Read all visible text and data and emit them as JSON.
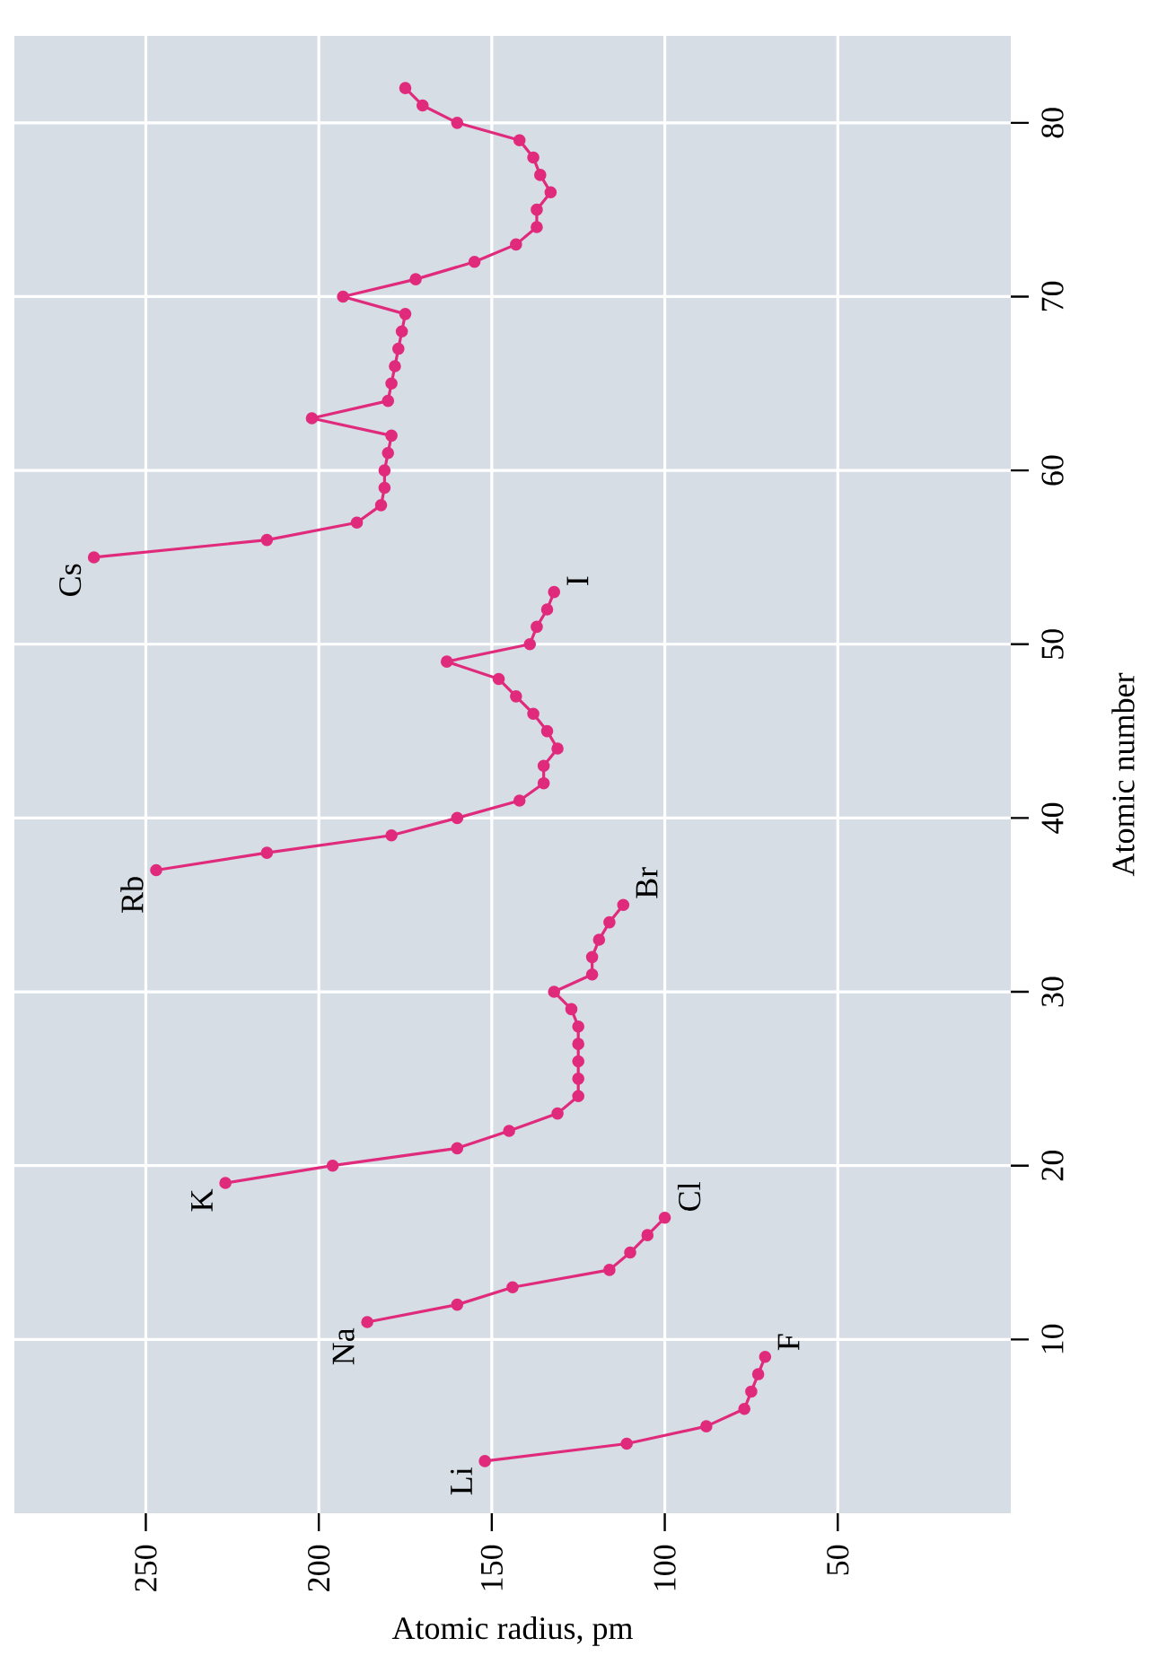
{
  "chart_data": {
    "type": "line",
    "xlabel": "Atomic radius, pm",
    "ylabel": "Atomic number",
    "xlim": [
      288,
      0
    ],
    "ylim": [
      0,
      85
    ],
    "xticks": [
      250,
      200,
      150,
      100,
      50
    ],
    "yticks": [
      10,
      20,
      30,
      40,
      50,
      60,
      70,
      80
    ],
    "grid": true,
    "marker": "circle",
    "line_style": "solid",
    "series": [
      {
        "color": "#e02a7c",
        "x": [
          152,
          111,
          88,
          77,
          75,
          73,
          71
        ],
        "values": [
          3,
          4,
          5,
          6,
          7,
          8,
          9
        ]
      },
      {
        "color": "#e02a7c",
        "x": [
          186,
          160,
          144,
          116,
          110,
          105,
          100
        ],
        "values": [
          11,
          12,
          13,
          14,
          15,
          16,
          17
        ]
      },
      {
        "color": "#e02a7c",
        "x": [
          227,
          196,
          160,
          145,
          131,
          125,
          125,
          125,
          125,
          125,
          127,
          132,
          121,
          121,
          119,
          116,
          112
        ],
        "values": [
          19,
          20,
          21,
          22,
          23,
          24,
          25,
          26,
          27,
          28,
          29,
          30,
          31,
          32,
          33,
          34,
          35
        ]
      },
      {
        "color": "#e02a7c",
        "x": [
          247,
          215,
          179,
          160,
          142,
          135,
          135,
          131,
          134,
          138,
          143,
          148,
          163,
          139,
          137,
          134,
          132
        ],
        "values": [
          37,
          38,
          39,
          40,
          41,
          42,
          43,
          44,
          45,
          46,
          47,
          48,
          49,
          50,
          51,
          52,
          53
        ]
      },
      {
        "color": "#e02a7c",
        "x": [
          265,
          215,
          189,
          182,
          181,
          181,
          180,
          179,
          202,
          180,
          179,
          178,
          177,
          176,
          175,
          193,
          172,
          155,
          143,
          137,
          137,
          133,
          136,
          138,
          142,
          160,
          170,
          175
        ],
        "values": [
          55,
          56,
          57,
          58,
          59,
          60,
          61,
          62,
          63,
          64,
          65,
          66,
          67,
          68,
          69,
          70,
          71,
          72,
          73,
          74,
          75,
          76,
          77,
          78,
          79,
          80,
          81,
          82
        ]
      }
    ],
    "annotations": [
      {
        "text": "Li",
        "x": 152,
        "y": 3
      },
      {
        "text": "F",
        "x": 71,
        "y": 9
      },
      {
        "text": "Na",
        "x": 186,
        "y": 11
      },
      {
        "text": "Cl",
        "x": 100,
        "y": 17
      },
      {
        "text": "K",
        "x": 227,
        "y": 19
      },
      {
        "text": "Br",
        "x": 112,
        "y": 35
      },
      {
        "text": "Rb",
        "x": 247,
        "y": 37
      },
      {
        "text": "I",
        "x": 132,
        "y": 53
      },
      {
        "text": "Cs",
        "x": 265,
        "y": 55
      }
    ]
  }
}
